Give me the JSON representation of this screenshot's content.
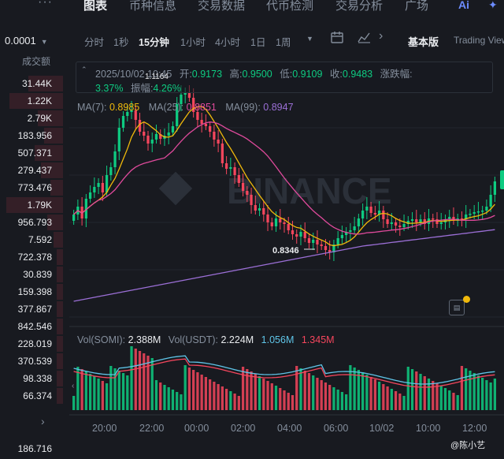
{
  "orderbook": {
    "precision": "0.0001",
    "volume_header": "成交额",
    "rows": [
      {
        "value": "31.44K",
        "side": "sell",
        "depth": 0.55
      },
      {
        "value": "1.22K",
        "side": "sell",
        "depth": 0.85
      },
      {
        "value": "2.79K",
        "side": "sell",
        "depth": 0.4
      },
      {
        "value": "183.956",
        "side": "sell",
        "depth": 0.3
      },
      {
        "value": "507.371",
        "side": "sell",
        "depth": 0.45
      },
      {
        "value": "279.437",
        "side": "sell",
        "depth": 0.35
      },
      {
        "value": "773.476",
        "side": "sell",
        "depth": 0.2
      },
      {
        "value": "1.79K",
        "side": "sell",
        "depth": 0.9
      },
      {
        "value": "956.793",
        "side": "sell",
        "depth": 0.25
      },
      {
        "value": "7.592",
        "side": "sell",
        "depth": 0.15
      },
      {
        "value": "722.378",
        "side": "sell",
        "depth": 0.1
      },
      {
        "value": "30.839",
        "side": "sell",
        "depth": 0.1
      },
      {
        "value": "159.398",
        "side": "sell",
        "depth": 0.1
      },
      {
        "value": "377.867",
        "side": "sell",
        "depth": 0.1
      },
      {
        "value": "842.546",
        "side": "sell",
        "depth": 0.1
      },
      {
        "value": "228.019",
        "side": "sell",
        "depth": 0.1
      },
      {
        "value": "370.539",
        "side": "sell",
        "depth": 0.1
      },
      {
        "value": "98.338",
        "side": "sell",
        "depth": 0.1
      },
      {
        "value": "66.374",
        "side": "sell",
        "depth": 0.1
      }
    ],
    "bottom_value": "186.716"
  },
  "tabs": [
    {
      "label": "图表",
      "active": true
    },
    {
      "label": "币种信息",
      "active": false
    },
    {
      "label": "交易数据",
      "active": false
    },
    {
      "label": "代币检测",
      "active": false
    },
    {
      "label": "交易分析",
      "active": false
    },
    {
      "label": "广场",
      "active": false
    }
  ],
  "ai_label": "Ai",
  "timeframes": [
    {
      "label": "分时",
      "active": false
    },
    {
      "label": "1秒",
      "active": false
    },
    {
      "label": "15分钟",
      "active": true
    },
    {
      "label": "1小时",
      "active": false
    },
    {
      "label": "4小时",
      "active": false
    },
    {
      "label": "1日",
      "active": false
    },
    {
      "label": "1周",
      "active": false
    }
  ],
  "toolbar": {
    "basic_label": "基本版",
    "tv_label": "Trading View",
    "icons": [
      "chevron-down-icon",
      "calendar-icon",
      "indicator-icon",
      "chevron-right-icon"
    ]
  },
  "ohlc": {
    "date": "2025/10/02 10:45",
    "open_label": "开:",
    "open": "0.9173",
    "high_label": "高:",
    "high": "0.9500",
    "low_label": "低:",
    "low": "0.9109",
    "close_label": "收:",
    "close": "0.9483",
    "change_label": "涨跌幅:",
    "change": "3.37%",
    "amp_label": "振幅:",
    "amp": "4.26%"
  },
  "ma": {
    "ma7_label": "MA(7):",
    "ma7": "0.8985",
    "ma7_color": "#f0b90b",
    "ma25_label": "MA(25):",
    "ma25": "0.8851",
    "ma25_color": "#e04a9c",
    "ma99_label": "MA(99):",
    "ma99": "0.8947",
    "ma99_color": "#9b6fd6"
  },
  "vol": {
    "somi_label": "Vol(SOMI):",
    "somi": "2.388M",
    "usdt_label": "Vol(USDT):",
    "usdt": "2.224M",
    "ma_a": "1.056M",
    "ma_a_color": "#5fc5e8",
    "ma_b": "1.345M",
    "ma_b_color": "#f6465d"
  },
  "chart_marks": {
    "high_label": "1.1164",
    "low_label": "0.8346"
  },
  "xaxis": [
    "20:00",
    "22:00",
    "00:00",
    "02:00",
    "04:00",
    "06:00",
    "10/02",
    "10:00",
    "12:00"
  ],
  "watermark_text": "@陈小艺",
  "watermark_logo": "BINANCE",
  "colors": {
    "up": "#0ecb81",
    "down": "#f6465d",
    "bg": "#181a20"
  }
}
